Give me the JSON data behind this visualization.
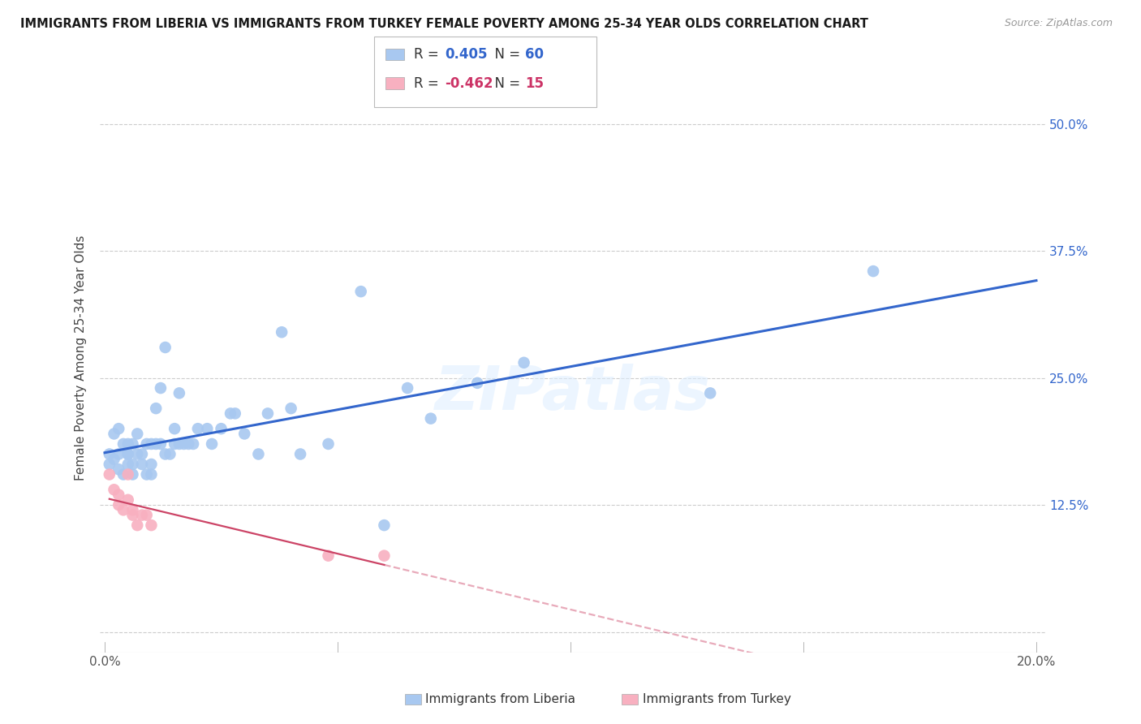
{
  "title": "IMMIGRANTS FROM LIBERIA VS IMMIGRANTS FROM TURKEY FEMALE POVERTY AMONG 25-34 YEAR OLDS CORRELATION CHART",
  "source": "Source: ZipAtlas.com",
  "ylabel": "Female Poverty Among 25-34 Year Olds",
  "xlim": [
    0.0,
    0.2
  ],
  "ylim": [
    0.0,
    0.55
  ],
  "xticks": [
    0.0,
    0.05,
    0.1,
    0.15,
    0.2
  ],
  "xtick_labels": [
    "0.0%",
    "",
    "",
    "",
    "20.0%"
  ],
  "ytick_vals": [
    0.0,
    0.125,
    0.25,
    0.375,
    0.5
  ],
  "ytick_labels": [
    "",
    "12.5%",
    "25.0%",
    "37.5%",
    "50.0%"
  ],
  "liberia_R": 0.405,
  "liberia_N": 60,
  "turkey_R": -0.462,
  "turkey_N": 15,
  "liberia_color": "#a8c8f0",
  "liberia_line_color": "#3366cc",
  "turkey_color": "#f8b0c0",
  "turkey_line_color": "#cc4466",
  "tick_color": "#3366cc",
  "liberia_x": [
    0.001,
    0.001,
    0.002,
    0.002,
    0.003,
    0.003,
    0.003,
    0.004,
    0.004,
    0.005,
    0.005,
    0.005,
    0.005,
    0.006,
    0.006,
    0.006,
    0.007,
    0.007,
    0.008,
    0.008,
    0.009,
    0.009,
    0.01,
    0.01,
    0.01,
    0.011,
    0.011,
    0.012,
    0.012,
    0.013,
    0.013,
    0.014,
    0.015,
    0.015,
    0.016,
    0.016,
    0.017,
    0.018,
    0.019,
    0.02,
    0.022,
    0.023,
    0.025,
    0.027,
    0.028,
    0.03,
    0.033,
    0.035,
    0.038,
    0.04,
    0.042,
    0.048,
    0.055,
    0.06,
    0.065,
    0.07,
    0.08,
    0.09,
    0.13,
    0.165
  ],
  "liberia_y": [
    0.175,
    0.165,
    0.17,
    0.195,
    0.16,
    0.175,
    0.2,
    0.155,
    0.185,
    0.165,
    0.175,
    0.175,
    0.185,
    0.155,
    0.165,
    0.185,
    0.175,
    0.195,
    0.165,
    0.175,
    0.155,
    0.185,
    0.155,
    0.165,
    0.185,
    0.185,
    0.22,
    0.185,
    0.24,
    0.175,
    0.28,
    0.175,
    0.185,
    0.2,
    0.185,
    0.235,
    0.185,
    0.185,
    0.185,
    0.2,
    0.2,
    0.185,
    0.2,
    0.215,
    0.215,
    0.195,
    0.175,
    0.215,
    0.295,
    0.22,
    0.175,
    0.185,
    0.335,
    0.105,
    0.24,
    0.21,
    0.245,
    0.265,
    0.235,
    0.355
  ],
  "turkey_x": [
    0.001,
    0.002,
    0.003,
    0.003,
    0.004,
    0.005,
    0.005,
    0.006,
    0.006,
    0.007,
    0.008,
    0.009,
    0.01,
    0.048,
    0.06
  ],
  "turkey_y": [
    0.155,
    0.14,
    0.125,
    0.135,
    0.12,
    0.155,
    0.13,
    0.12,
    0.115,
    0.105,
    0.115,
    0.115,
    0.105,
    0.075,
    0.075
  ]
}
